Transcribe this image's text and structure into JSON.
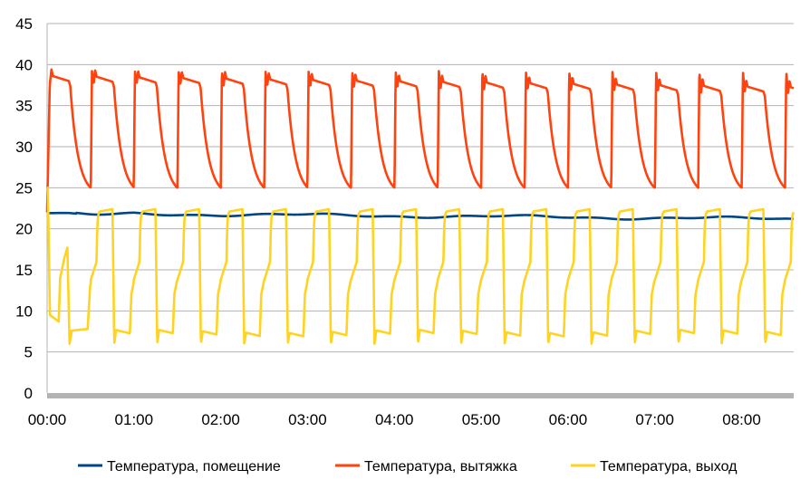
{
  "chart_data": {
    "type": "line",
    "title": "",
    "xlabel": "",
    "ylabel": "",
    "ylim": [
      0,
      45
    ],
    "yticks": [
      "0",
      "5",
      "10",
      "15",
      "20",
      "25",
      "30",
      "35",
      "40",
      "45"
    ],
    "xlim": [
      "00:00",
      "08:36"
    ],
    "xticks": [
      "00:00",
      "01:00",
      "02:00",
      "03:00",
      "04:00",
      "05:00",
      "06:00",
      "07:00",
      "08:00"
    ],
    "grid": "horizontal",
    "legend_position": "bottom",
    "cycle_minutes": 30,
    "series": [
      {
        "name": "Температура, помещение",
        "color": "#004586",
        "start_value": 21.9,
        "end_value": 21.2
      },
      {
        "name": "Температура, вытяжка",
        "color": "#ff420e",
        "start_value": 22,
        "high_value": 37.5,
        "peak_value": 39,
        "low_value": 25
      },
      {
        "name": "Температура, выход",
        "color": "#ffd320",
        "start_value": 25,
        "high_value": 22.3,
        "low_value": 7,
        "dip_value": 6,
        "first_cycle_low": 9,
        "first_cycle_mid": 16
      }
    ]
  }
}
